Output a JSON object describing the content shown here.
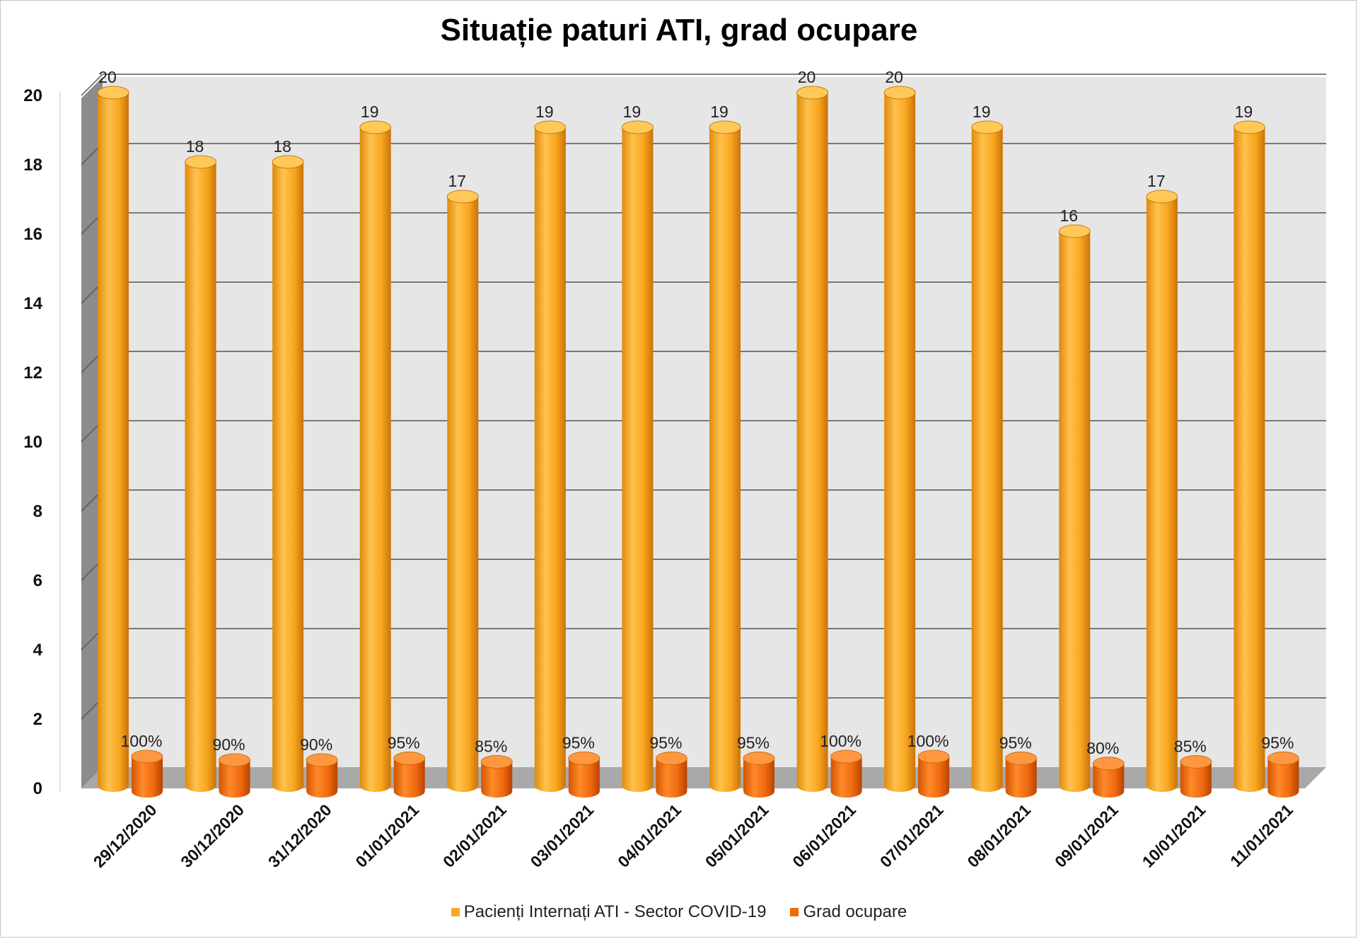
{
  "chart_data": {
    "type": "bar",
    "title": "Situație paturi ATI, grad ocupare",
    "xlabel": "",
    "ylabel": "",
    "ylim": [
      0,
      20
    ],
    "yticks": [
      0,
      2,
      4,
      6,
      8,
      10,
      12,
      14,
      16,
      18,
      20
    ],
    "grid": true,
    "legend_position": "bottom",
    "categories": [
      "29/12/2020",
      "30/12/2020",
      "31/12/2020",
      "01/01/2021",
      "02/01/2021",
      "03/01/2021",
      "04/01/2021",
      "05/01/2021",
      "06/01/2021",
      "07/01/2021",
      "08/01/2021",
      "09/01/2021",
      "10/01/2021",
      "11/01/2021"
    ],
    "series": [
      {
        "name": "Pacienți Internați ATI - Sector COVID-19",
        "color": "#F9A825",
        "values": [
          20,
          18,
          18,
          19,
          17,
          19,
          19,
          19,
          20,
          20,
          19,
          16,
          17,
          19
        ],
        "labels": [
          "20",
          "18",
          "18",
          "19",
          "17",
          "19",
          "19",
          "19",
          "20",
          "20",
          "19",
          "16",
          "17",
          "19"
        ]
      },
      {
        "name": "Grad ocupare",
        "color": "#EF6C00",
        "values": [
          1.0,
          0.9,
          0.9,
          0.95,
          0.85,
          0.95,
          0.95,
          0.95,
          1.0,
          1.0,
          0.95,
          0.8,
          0.85,
          0.95
        ],
        "labels": [
          "100%",
          "90%",
          "90%",
          "95%",
          "85%",
          "95%",
          "95%",
          "95%",
          "100%",
          "100%",
          "95%",
          "80%",
          "85%",
          "95%"
        ]
      }
    ]
  }
}
